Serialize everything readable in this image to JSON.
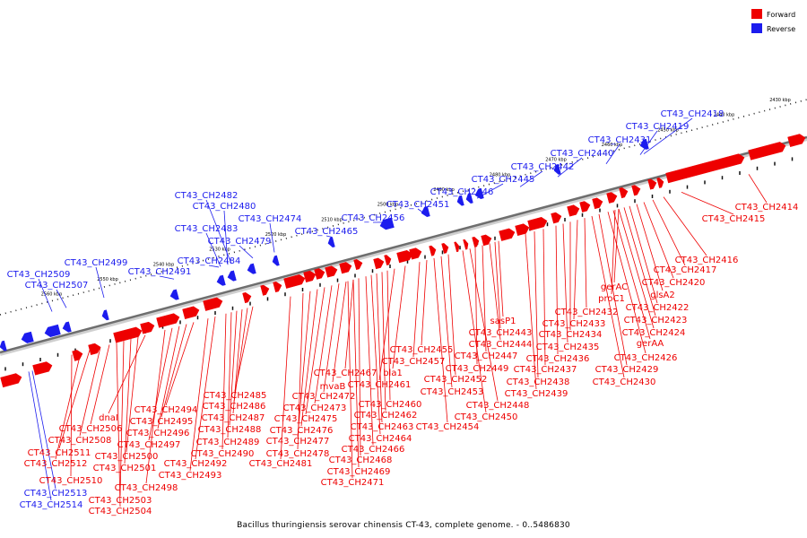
{
  "legend": {
    "forward_label": "Forward",
    "reverse_label": "Reverse",
    "forward_color": "#ee0000",
    "reverse_color": "#1c1cee"
  },
  "caption": "Bacillus thuringiensis serovar chinensis CT-43, complete genome. - 0..5486830",
  "scale_ticks": [
    "2430 kbp",
    "2440 kbp",
    "2450 kbp",
    "2460 kbp",
    "2470 kbp",
    "2480 kbp",
    "2490 kbp",
    "2500 kbp",
    "2510 kbp",
    "2520 kbp",
    "2530 kbp",
    "2540 kbp",
    "2550 kbp",
    "2560 kbp"
  ],
  "genes_reverse": [
    "CT43_CH2418",
    "CT43_CH2419",
    "CT43_CH2431",
    "CT43_CH2440",
    "CT43_CH2442",
    "CT43_CH2445",
    "CT43_CH2446",
    "CT43_CH2451",
    "CT43_CH2456",
    "CT43_CH2465",
    "CT43_CH2474",
    "CT43_CH2482",
    "CT43_CH2480",
    "CT43_CH2483",
    "CT43_CH2479",
    "CT43_CH2484",
    "CT43_CH2491",
    "CT43_CH2499",
    "CT43_CH2509",
    "CT43_CH2507",
    "CT43_CH2513",
    "CT43_CH2514"
  ],
  "genes_forward": [
    "CT43_CH2414",
    "CT43_CH2415",
    "CT43_CH2416",
    "CT43_CH2417",
    "CT43_CH2420",
    "glsA2",
    "CT43_CH2422",
    "CT43_CH2423",
    "CT43_CH2424",
    "gerAA",
    "CT43_CH2426",
    "CT43_CH2429",
    "CT43_CH2430",
    "gerAC",
    "proC1",
    "CT43_CH2432",
    "CT43_CH2433",
    "CT43_CH2434",
    "CT43_CH2435",
    "CT43_CH2436",
    "CT43_CH2437",
    "CT43_CH2438",
    "CT43_CH2439",
    "sasP1",
    "CT43_CH2443",
    "CT43_CH2444",
    "CT43_CH2447",
    "CT43_CH2449",
    "CT43_CH2448",
    "CT43_CH2450",
    "CT43_CH2455",
    "CT43_CH2457",
    "CT43_CH2452",
    "CT43_CH2453",
    "CT43_CH2454",
    "bla1",
    "CT43_CH2461",
    "CT43_CH2460",
    "CT43_CH2462",
    "CT43_CH2463",
    "CT43_CH2464",
    "CT43_CH2466",
    "CT43_CH2468",
    "CT43_CH2469",
    "CT43_CH2471",
    "CT43_CH2467",
    "mvaB",
    "CT43_CH2472",
    "CT43_CH2473",
    "CT43_CH2475",
    "CT43_CH2476",
    "CT43_CH2477",
    "CT43_CH2478",
    "CT43_CH2481",
    "CT43_CH2485",
    "CT43_CH2486",
    "CT43_CH2487",
    "CT43_CH2488",
    "CT43_CH2489",
    "CT43_CH2490",
    "CT43_CH2492",
    "CT43_CH2493",
    "CT43_CH2494",
    "CT43_CH2495",
    "CT43_CH2496",
    "CT43_CH2497",
    "CT43_CH2498",
    "dnaI",
    "CT43_CH2500",
    "CT43_CH2501",
    "CT43_CH2503",
    "CT43_CH2504",
    "CT43_CH2506",
    "CT43_CH2508",
    "CT43_CH2511",
    "CT43_CH2512",
    "CT43_CH2510"
  ]
}
